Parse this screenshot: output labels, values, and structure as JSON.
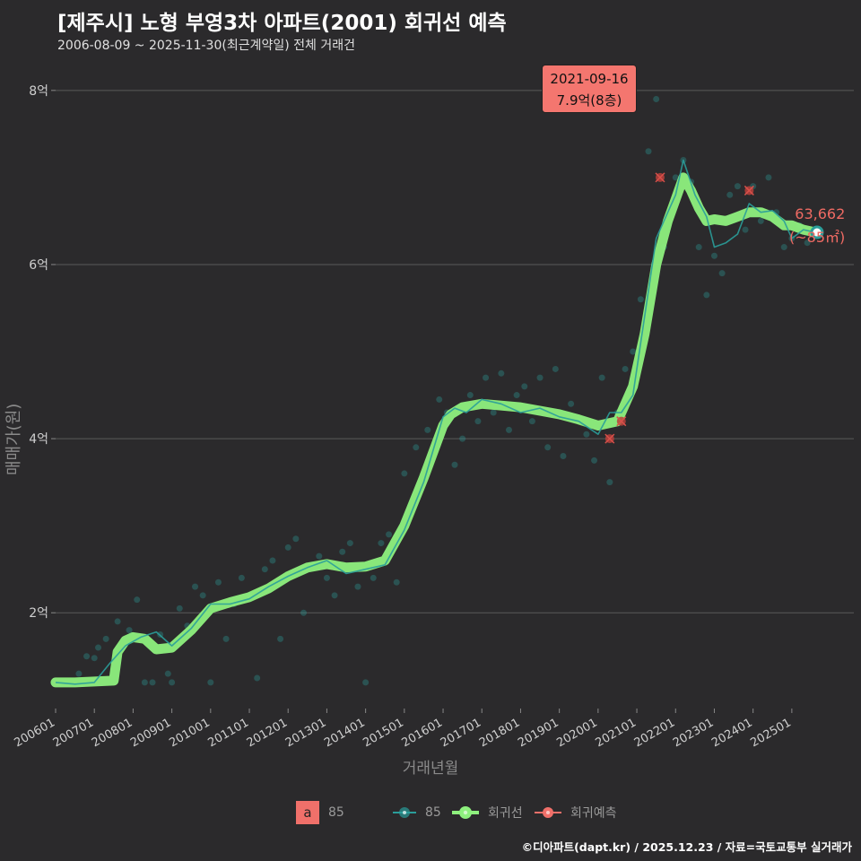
{
  "header": {
    "title": "[제주시] 노형 부영3차 아파트(2001) 회귀선 예측",
    "subtitle": "2006-08-09 ~ 2025-11-30(최근계약일) 전체 거래건"
  },
  "footer": "©디아파트(dapt.kr) / 2025.12.23 / 자료=국토교통부 실거래가",
  "tooltip": {
    "date": "2021-09-16",
    "value": "7.9억(8층)"
  },
  "last_point": {
    "price": "63,662",
    "area": "(~85㎡)"
  },
  "legend": {
    "text_key_letter": "a",
    "text_key_label": "85",
    "series_label": "85",
    "regression_label": "회귀선",
    "forecast_label": "회귀예측"
  },
  "colors": {
    "background": "#2b2a2c",
    "series": "#2a9d9a",
    "regression": "#8ef07e",
    "forecast": "#f0706a",
    "grid": "#5a5a5a"
  },
  "chart_data": {
    "type": "line",
    "title": "[제주시] 노형 부영3차 아파트(2001) 회귀선 예측",
    "xlabel": "거래년월",
    "ylabel": "매매가(원)",
    "x_unit": "year (decimal)",
    "y_unit": "억",
    "xlim": [
      2006.0,
      2026.6
    ],
    "ylim": [
      0.9,
      8.4
    ],
    "y_ticks": [
      2,
      4,
      6,
      8
    ],
    "y_tick_labels": [
      "2억",
      "4억",
      "6억",
      "8억"
    ],
    "x_ticks": [
      2006.0,
      2007.0,
      2008.0,
      2009.0,
      2010.0,
      2011.0,
      2012.0,
      2013.0,
      2014.0,
      2015.0,
      2016.0,
      2017.0,
      2018.0,
      2019.0,
      2020.0,
      2021.0,
      2022.0,
      2023.0,
      2024.0,
      2025.0
    ],
    "x_tick_labels": [
      "200601",
      "200701",
      "200801",
      "200901",
      "201001",
      "201101",
      "201201",
      "201301",
      "201401",
      "201501",
      "201601",
      "201701",
      "201801",
      "201901",
      "202001",
      "202101",
      "202201",
      "202301",
      "202401",
      "202501"
    ],
    "series": [
      {
        "name": "회귀선",
        "style": "thick",
        "x": [
          2006.0,
          2006.5,
          2007.5,
          2007.6,
          2007.8,
          2008.0,
          2008.3,
          2008.6,
          2009.0,
          2009.5,
          2010.0,
          2010.5,
          2011.0,
          2011.5,
          2012.0,
          2012.5,
          2013.0,
          2013.5,
          2014.0,
          2014.5,
          2015.0,
          2015.5,
          2016.0,
          2016.2,
          2016.5,
          2017.0,
          2017.5,
          2018.0,
          2018.5,
          2019.0,
          2019.5,
          2020.0,
          2020.5,
          2020.9,
          2021.2,
          2021.5,
          2021.8,
          2022.0,
          2022.2,
          2022.4,
          2022.6,
          2022.8,
          2023.0,
          2023.3,
          2023.6,
          2023.9,
          2024.2,
          2024.5,
          2024.8,
          2025.0,
          2025.3,
          2025.6
        ],
        "y": [
          1.2,
          1.2,
          1.22,
          1.55,
          1.68,
          1.72,
          1.7,
          1.58,
          1.6,
          1.8,
          2.05,
          2.12,
          2.18,
          2.28,
          2.42,
          2.52,
          2.56,
          2.52,
          2.53,
          2.6,
          3.0,
          3.55,
          4.15,
          4.28,
          4.36,
          4.4,
          4.38,
          4.36,
          4.32,
          4.28,
          4.22,
          4.15,
          4.2,
          4.6,
          5.2,
          6.0,
          6.5,
          6.75,
          7.0,
          6.85,
          6.65,
          6.5,
          6.52,
          6.5,
          6.55,
          6.6,
          6.6,
          6.55,
          6.45,
          6.45,
          6.4,
          6.37
        ]
      },
      {
        "name": "85",
        "style": "line",
        "x": [
          2006.0,
          2006.5,
          2007.0,
          2007.4,
          2007.8,
          2008.2,
          2008.6,
          2009.0,
          2009.5,
          2010.0,
          2010.5,
          2011.0,
          2011.5,
          2012.0,
          2012.5,
          2013.0,
          2013.5,
          2014.0,
          2014.5,
          2015.0,
          2015.5,
          2016.0,
          2016.3,
          2016.6,
          2017.0,
          2017.5,
          2018.0,
          2018.5,
          2019.0,
          2019.5,
          2020.0,
          2020.3,
          2020.6,
          2020.9,
          2021.2,
          2021.5,
          2021.8,
          2022.0,
          2022.2,
          2022.5,
          2022.8,
          2023.0,
          2023.3,
          2023.6,
          2023.9,
          2024.2,
          2024.5,
          2024.8,
          2025.0,
          2025.3,
          2025.6
        ],
        "y": [
          1.2,
          1.18,
          1.2,
          1.42,
          1.62,
          1.72,
          1.78,
          1.62,
          1.82,
          2.1,
          2.1,
          2.16,
          2.3,
          2.42,
          2.52,
          2.6,
          2.45,
          2.5,
          2.55,
          2.95,
          3.5,
          4.25,
          4.35,
          4.3,
          4.45,
          4.4,
          4.3,
          4.35,
          4.25,
          4.2,
          4.05,
          4.3,
          4.3,
          4.5,
          5.4,
          6.3,
          6.6,
          6.8,
          7.2,
          6.8,
          6.55,
          6.2,
          6.25,
          6.35,
          6.7,
          6.6,
          6.62,
          6.5,
          6.3,
          6.4,
          6.37
        ]
      }
    ],
    "points": {
      "name": "85 거래",
      "x": [
        2006.6,
        2006.8,
        2007.0,
        2007.1,
        2007.3,
        2007.6,
        2007.9,
        2008.1,
        2008.3,
        2008.5,
        2008.7,
        2008.9,
        2009.0,
        2009.2,
        2009.4,
        2009.6,
        2009.8,
        2010.0,
        2010.2,
        2010.4,
        2010.6,
        2010.8,
        2011.0,
        2011.2,
        2011.4,
        2011.6,
        2011.8,
        2012.0,
        2012.2,
        2012.4,
        2012.6,
        2012.8,
        2013.0,
        2013.2,
        2013.4,
        2013.6,
        2013.8,
        2014.0,
        2014.2,
        2014.4,
        2014.6,
        2014.8,
        2015.0,
        2015.3,
        2015.6,
        2015.9,
        2016.1,
        2016.3,
        2016.5,
        2016.7,
        2016.9,
        2017.1,
        2017.3,
        2017.5,
        2017.7,
        2017.9,
        2018.1,
        2018.3,
        2018.5,
        2018.7,
        2018.9,
        2019.1,
        2019.3,
        2019.5,
        2019.7,
        2019.9,
        2020.1,
        2020.3,
        2020.5,
        2020.7,
        2020.9,
        2021.1,
        2021.3,
        2021.5,
        2021.7,
        2022.0,
        2022.2,
        2022.4,
        2022.6,
        2022.8,
        2023.0,
        2023.2,
        2023.4,
        2023.6,
        2023.8,
        2024.0,
        2024.2,
        2024.4,
        2024.6,
        2024.8,
        2025.0,
        2025.2,
        2025.4,
        2025.6
      ],
      "y": [
        1.3,
        1.5,
        1.48,
        1.6,
        1.7,
        1.9,
        1.8,
        2.15,
        1.2,
        1.2,
        1.75,
        1.3,
        1.2,
        2.05,
        1.85,
        2.3,
        2.2,
        1.2,
        2.35,
        1.7,
        2.1,
        2.4,
        2.2,
        1.25,
        2.5,
        2.6,
        1.7,
        2.75,
        2.85,
        2.0,
        2.55,
        2.65,
        2.4,
        2.2,
        2.7,
        2.8,
        2.3,
        1.2,
        2.4,
        2.8,
        2.9,
        2.35,
        3.6,
        3.9,
        4.1,
        4.45,
        4.3,
        3.7,
        4.0,
        4.5,
        4.2,
        4.7,
        4.3,
        4.75,
        4.1,
        4.5,
        4.6,
        4.2,
        4.7,
        3.9,
        4.8,
        3.8,
        4.4,
        4.2,
        4.05,
        3.75,
        4.7,
        3.5,
        4.3,
        4.8,
        5.0,
        5.6,
        7.3,
        7.9,
        6.2,
        7.0,
        7.2,
        6.95,
        6.2,
        5.65,
        6.1,
        5.9,
        6.8,
        6.9,
        6.4,
        6.9,
        6.5,
        7.0,
        6.6,
        6.2,
        6.3,
        6.45,
        6.25,
        6.35
      ]
    },
    "forecast_points": {
      "name": "회귀예측",
      "x": [
        2020.3,
        2020.6,
        2021.6,
        2023.9
      ],
      "y": [
        4.0,
        4.2,
        7.0,
        6.85
      ]
    },
    "highlight": {
      "x": 2025.65,
      "y": 6.37,
      "label": "63,662"
    }
  }
}
